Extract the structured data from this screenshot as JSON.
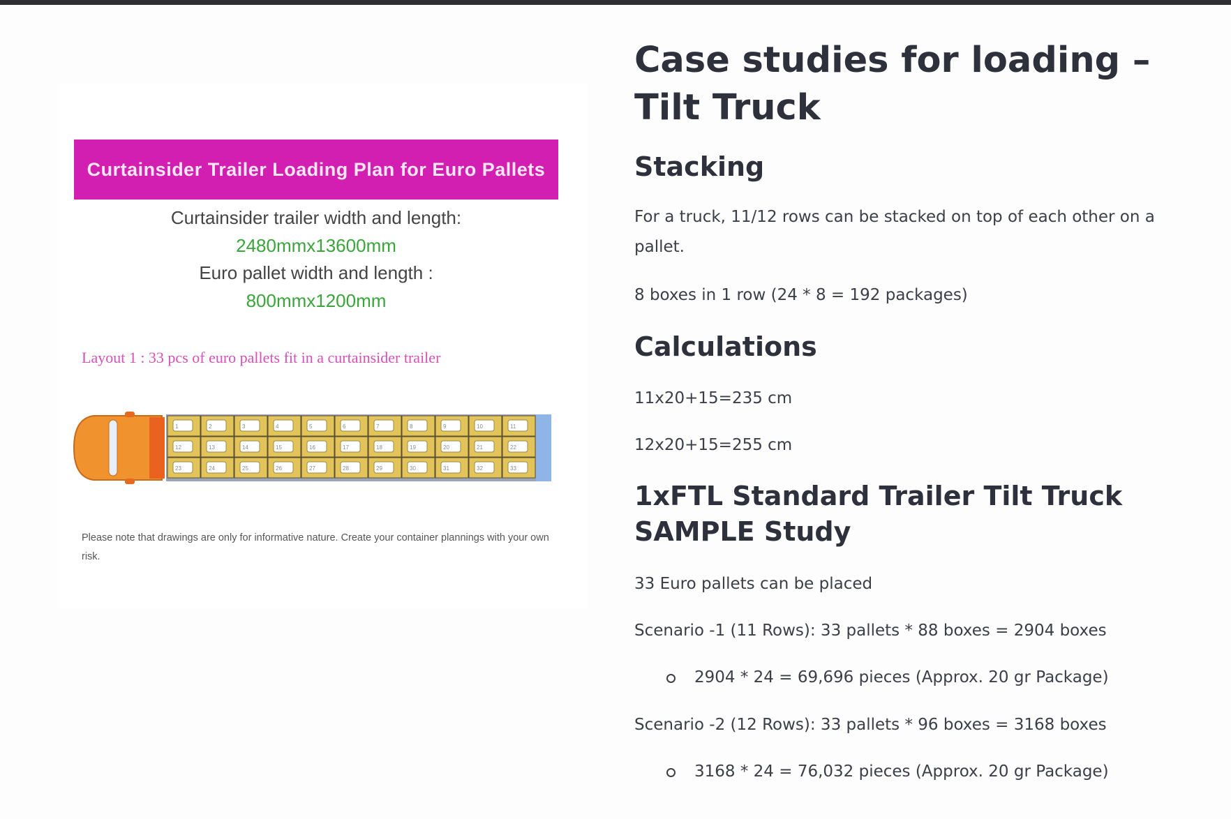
{
  "image": {
    "banner_title": "Curtainsider Trailer Loading Plan for Euro Pallets",
    "trailer_label": "Curtainsider trailer width and length:",
    "trailer_dims": "2480mmx13600mm",
    "pallet_label": "Euro pallet width and length :",
    "pallet_dims": "800mmx1200mm",
    "layout_caption": "Layout 1 : 33 pcs of euro pallets fit in a curtainsider trailer",
    "pallet_numbers": [
      "1",
      "2",
      "3",
      "4",
      "5",
      "6",
      "7",
      "8",
      "9",
      "10",
      "11",
      "12",
      "13",
      "14",
      "15",
      "16",
      "17",
      "18",
      "19",
      "20",
      "21",
      "22",
      "23",
      "24",
      "25",
      "26",
      "27",
      "28",
      "29",
      "30",
      "31",
      "32",
      "33"
    ],
    "disclaimer": "Please note that drawings are only for informative nature. Create your container plannings with your own risk.",
    "colors": {
      "banner": "#d21fb1",
      "cab": "#f0922e",
      "pallet": "#e3c45a",
      "trailer_end": "#8fb4e8"
    }
  },
  "article": {
    "title": "Case studies for loading – Tilt Truck",
    "stacking_heading": "Stacking",
    "stacking_text": "For a truck, 11/12 rows can be stacked on top of each other on a pallet.",
    "boxes_text": "8 boxes in 1 row (24 * 8 = 192 packages)",
    "calc_heading": "Calculations",
    "calc_1": "11x20+15=235 cm",
    "calc_2": "12x20+15=255 cm",
    "study_heading": "1xFTL Standard Trailer Tilt Truck SAMPLE Study",
    "pallets_text": "33 Euro pallets can be placed",
    "scenario_1": "Scenario -1 (11 Rows): 33 pallets * 88 boxes = 2904 boxes",
    "scenario_1_detail": "2904 * 24 = 69,696 pieces (Approx. 20 gr Package)",
    "scenario_2": "Scenario -2 (12 Rows): 33 pallets * 96 boxes = 3168 boxes",
    "scenario_2_detail": "3168 * 24 = 76,032 pieces (Approx. 20 gr Package)"
  }
}
